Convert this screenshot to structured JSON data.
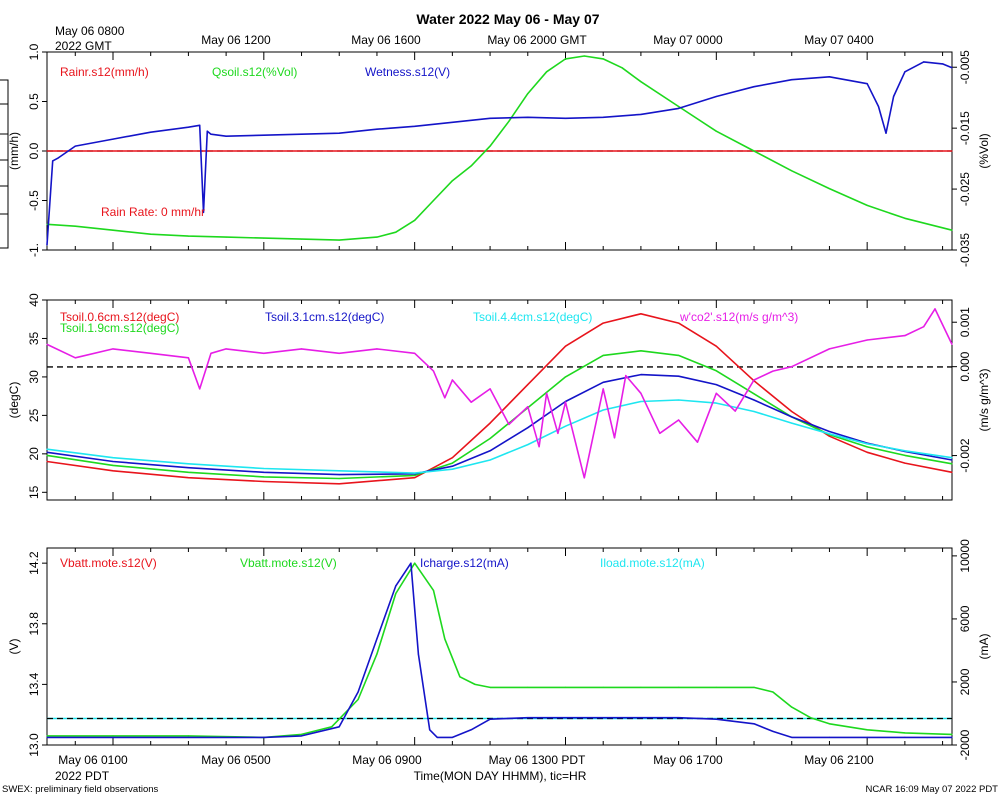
{
  "title": "Water 2022 May 06 - May 07",
  "top_axis": {
    "first_label_line1": "May 06 0800",
    "first_label_line2": "2022 GMT",
    "tick_labels": [
      "May 06 1200",
      "May 06 1600",
      "May 06 2000 GMT",
      "May 07 0000",
      "May 07 0400"
    ]
  },
  "bottom_axis": {
    "tick_labels": [
      "May 06 0100",
      "May 06 0500",
      "May 06 0900",
      "May 06 1300 PDT",
      "May 06 1700",
      "May 06 2100"
    ],
    "year_label": "2022 PDT",
    "axis_title": "Time(MON DAY HHMM), tic=HR"
  },
  "footer": {
    "left": "SWEX: preliminary field observations",
    "right": "NCAR 16:09 May 07 2022 PDT"
  },
  "colors": {
    "red": "#e8141c",
    "green": "#1ed81e",
    "blue": "#1414c8",
    "cyan": "#1ee6f0",
    "magenta": "#e61ee6",
    "black": "#000000"
  },
  "chart_data": [
    {
      "type": "line",
      "panel": "top",
      "x_units": "hours since May 06 0000 PDT",
      "xlim": [
        -0.75,
        23.25
      ],
      "left_axis": {
        "label": "(mm/h)",
        "ylim": [
          -1.0,
          1.0
        ],
        "ticks": [
          "-1.",
          "-0.5",
          "0.0",
          "0.5",
          "1.0"
        ]
      },
      "right_axis": {
        "label": "(%Vol)",
        "ylim": [
          -0.035,
          -0.0025
        ],
        "ticks": [
          "-0.035",
          "-0.025",
          "-0.015",
          "-0.005"
        ]
      },
      "zero_line": 0.0,
      "legend": [
        {
          "name": "Rainr.s12(mm/h)",
          "color": "red"
        },
        {
          "name": "Qsoil.s12(%Vol)",
          "color": "green"
        },
        {
          "name": "Wetness.s12(V)",
          "color": "blue"
        }
      ],
      "annotation": "Rain Rate: 0 mm/hr",
      "series": [
        {
          "name": "Rainr.s12(mm/h)",
          "color": "red",
          "axis": "left",
          "x": [
            -0.75,
            23.25
          ],
          "y": [
            0.0,
            0.0
          ]
        },
        {
          "name": "Qsoil.s12(%Vol)",
          "color": "green",
          "axis": "left",
          "x": [
            -0.75,
            0,
            1,
            2,
            3,
            4,
            5,
            6,
            7,
            8,
            8.5,
            9,
            9.5,
            10,
            10.5,
            11,
            11.5,
            12,
            12.5,
            13,
            13.5,
            14,
            14.5,
            15,
            16,
            17,
            18,
            19,
            20,
            21,
            22,
            23.25
          ],
          "y": [
            -0.74,
            -0.76,
            -0.8,
            -0.84,
            -0.86,
            -0.87,
            -0.88,
            -0.89,
            -0.9,
            -0.87,
            -0.82,
            -0.7,
            -0.5,
            -0.3,
            -0.15,
            0.05,
            0.3,
            0.58,
            0.8,
            0.93,
            0.96,
            0.93,
            0.84,
            0.7,
            0.45,
            0.2,
            0.0,
            -0.2,
            -0.38,
            -0.55,
            -0.68,
            -0.8
          ]
        },
        {
          "name": "Wetness.s12(V)",
          "color": "blue",
          "axis": "left",
          "x": [
            -0.75,
            -0.6,
            -0.45,
            0,
            1,
            2,
            3,
            3.3,
            3.4,
            3.5,
            3.6,
            4,
            5,
            6,
            7,
            8,
            9,
            10,
            11,
            12,
            13,
            14,
            15,
            16,
            17,
            18,
            19,
            20,
            21,
            21.3,
            21.5,
            21.7,
            22,
            22.5,
            23,
            23.25
          ],
          "y": [
            -0.95,
            -0.1,
            -0.07,
            0.05,
            0.12,
            0.19,
            0.24,
            0.26,
            -0.62,
            0.2,
            0.17,
            0.15,
            0.16,
            0.17,
            0.18,
            0.22,
            0.25,
            0.29,
            0.33,
            0.34,
            0.33,
            0.34,
            0.37,
            0.43,
            0.55,
            0.65,
            0.72,
            0.75,
            0.68,
            0.45,
            0.18,
            0.55,
            0.8,
            0.9,
            0.88,
            0.84
          ]
        }
      ]
    },
    {
      "type": "line",
      "panel": "middle",
      "x_units": "hours since May 06 0000 PDT",
      "xlim": [
        -0.75,
        23.25
      ],
      "left_axis": {
        "label": "(degC)",
        "ylim": [
          14,
          40
        ],
        "ticks": [
          "15",
          "20",
          "25",
          "30",
          "35",
          "40"
        ]
      },
      "right_axis": {
        "label": "(m/s g/m^3)",
        "ylim": [
          -0.003,
          0.0015
        ],
        "ticks": [
          "-0.002",
          "0.000",
          "0.001"
        ]
      },
      "zero_line_degC": 31.3,
      "legend": [
        {
          "name": "Tsoil.0.6cm.s12(degC)",
          "color": "red"
        },
        {
          "name": "Tsoil.1.9cm.s12(degC)",
          "color": "green"
        },
        {
          "name": "Tsoil.3.1cm.s12(degC)",
          "color": "blue"
        },
        {
          "name": "Tsoil.4.4cm.s12(degC)",
          "color": "cyan"
        },
        {
          "name": "w'co2'.s12(m/s g/m^3)",
          "color": "magenta"
        }
      ],
      "series": [
        {
          "name": "Tsoil.0.6cm.s12(degC)",
          "color": "red",
          "x": [
            -0.75,
            1,
            3,
            5,
            7,
            9,
            10,
            11,
            12,
            13,
            14,
            15,
            16,
            17,
            18,
            19,
            20,
            21,
            22,
            23.25
          ],
          "y": [
            19.0,
            17.8,
            16.9,
            16.4,
            16.1,
            16.9,
            19.5,
            24.0,
            29.0,
            34.0,
            37.0,
            38.2,
            37.0,
            34.0,
            29.5,
            25.5,
            22.3,
            20.2,
            18.8,
            17.6
          ]
        },
        {
          "name": "Tsoil.1.9cm.s12(degC)",
          "color": "green",
          "x": [
            -0.75,
            1,
            3,
            5,
            7,
            9,
            10,
            11,
            12,
            13,
            14,
            15,
            16,
            17,
            18,
            19,
            20,
            21,
            22,
            23.25
          ],
          "y": [
            19.8,
            18.5,
            17.6,
            17.0,
            16.8,
            17.2,
            18.8,
            22.0,
            26.0,
            30.0,
            32.8,
            33.4,
            32.8,
            30.8,
            27.8,
            24.8,
            22.5,
            20.9,
            19.8,
            18.7
          ]
        },
        {
          "name": "Tsoil.3.1cm.s12(degC)",
          "color": "blue",
          "x": [
            -0.75,
            1,
            3,
            5,
            7,
            9,
            10,
            11,
            12,
            13,
            14,
            15,
            16,
            17,
            18,
            19,
            20,
            21,
            22,
            23.25
          ],
          "y": [
            20.2,
            19.0,
            18.2,
            17.6,
            17.3,
            17.4,
            18.4,
            20.4,
            23.4,
            26.8,
            29.3,
            30.3,
            30.1,
            29.0,
            27.0,
            24.8,
            22.9,
            21.4,
            20.3,
            19.2
          ]
        },
        {
          "name": "Tsoil.4.4cm.s12(degC)",
          "color": "cyan",
          "x": [
            -0.75,
            1,
            3,
            5,
            7,
            9,
            10,
            11,
            12,
            13,
            14,
            15,
            16,
            17,
            18,
            19,
            20,
            21,
            22,
            23.25
          ],
          "y": [
            20.6,
            19.5,
            18.7,
            18.1,
            17.8,
            17.5,
            18.0,
            19.2,
            21.2,
            23.6,
            25.7,
            26.8,
            27.0,
            26.6,
            25.5,
            24.0,
            22.6,
            21.3,
            20.4,
            19.5
          ]
        },
        {
          "name": "w'co2'.s12(m/s g/m^3)",
          "color": "magenta",
          "x": [
            -0.75,
            0,
            1,
            2,
            3,
            3.3,
            3.6,
            4,
            5,
            6,
            7,
            8,
            9,
            9.5,
            9.8,
            10,
            10.5,
            11,
            11.5,
            12,
            12.3,
            12.5,
            12.8,
            13,
            13.5,
            14,
            14.3,
            14.6,
            15,
            15.5,
            16,
            16.5,
            17,
            17.5,
            18,
            18.5,
            19,
            20,
            21,
            22,
            22.5,
            22.8,
            23.25
          ],
          "y": [
            0.0005,
            0.0002,
            0.0004,
            0.0003,
            0.0002,
            -0.0005,
            0.0003,
            0.0004,
            0.0003,
            0.0004,
            0.0003,
            0.0004,
            0.0003,
            -0.0001,
            -0.0007,
            -0.0003,
            -0.0008,
            -0.0005,
            -0.0013,
            -0.0009,
            -0.0018,
            -0.0006,
            -0.0015,
            -0.0008,
            -0.0025,
            -0.0005,
            -0.0016,
            -0.0002,
            -0.0006,
            -0.0015,
            -0.0012,
            -0.0017,
            -0.0006,
            -0.001,
            -0.0003,
            -0.0001,
            0.0,
            0.0004,
            0.0006,
            0.0007,
            0.0009,
            0.0013,
            0.0005
          ]
        }
      ]
    },
    {
      "type": "line",
      "panel": "bottom",
      "x_units": "hours since May 06 0000 PDT",
      "xlim": [
        -0.75,
        23.25
      ],
      "left_axis": {
        "label": "(V)",
        "ylim": [
          13.0,
          14.3
        ],
        "ticks": [
          "13.0",
          "13.4",
          "13.8",
          "14.2"
        ]
      },
      "right_axis": {
        "label": "(mA)",
        "ylim": [
          -2000,
          10500
        ],
        "ticks": [
          "-2000",
          "2000",
          "6000",
          "10000"
        ]
      },
      "zero_line_V": 13.175,
      "legend": [
        {
          "name": "Vbatt.mote.s12(V)",
          "color": "red"
        },
        {
          "name": "Vbatt.mote.s12(V)",
          "color": "green"
        },
        {
          "name": "Icharge.s12(mA)",
          "color": "blue"
        },
        {
          "name": "Iload.mote.s12(mA)",
          "color": "cyan"
        }
      ],
      "series": [
        {
          "name": "Vbatt.mote.s12(V)",
          "color": "green",
          "x": [
            -0.75,
            1,
            3,
            5,
            6,
            6.8,
            7.5,
            8,
            8.5,
            9.0,
            9.5,
            9.8,
            10.2,
            10.6,
            11,
            12,
            13,
            14,
            15,
            16,
            17,
            18,
            18.5,
            19,
            19.5,
            20,
            21,
            22,
            23.25
          ],
          "y": [
            13.06,
            13.06,
            13.06,
            13.05,
            13.07,
            13.12,
            13.3,
            13.6,
            14.0,
            14.2,
            14.02,
            13.7,
            13.45,
            13.4,
            13.38,
            13.38,
            13.38,
            13.38,
            13.38,
            13.38,
            13.38,
            13.38,
            13.35,
            13.25,
            13.18,
            13.14,
            13.1,
            13.08,
            13.07
          ]
        },
        {
          "name": "Icharge.s12(mA)",
          "color": "blue",
          "x": [
            -0.75,
            1,
            3,
            5,
            6,
            7,
            7.5,
            8,
            8.5,
            8.9,
            9.1,
            9.4,
            9.6,
            10.0,
            10.5,
            11,
            12,
            14,
            16,
            17,
            18,
            18.5,
            19,
            20,
            21,
            22,
            23.25
          ],
          "y": [
            13.05,
            13.05,
            13.05,
            13.05,
            13.06,
            13.12,
            13.35,
            13.7,
            14.05,
            14.2,
            13.6,
            13.1,
            13.05,
            13.05,
            13.1,
            13.17,
            13.18,
            13.18,
            13.18,
            13.17,
            13.14,
            13.09,
            13.05,
            13.05,
            13.05,
            13.05,
            13.05
          ]
        }
      ]
    }
  ]
}
